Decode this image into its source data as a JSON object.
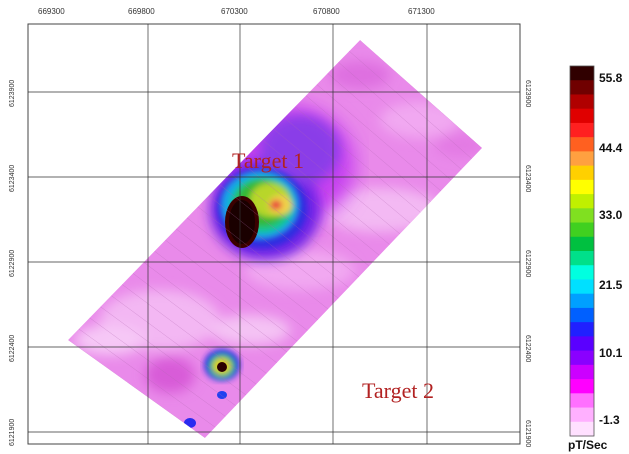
{
  "x_ticks": [
    "669300",
    "669800",
    "670300",
    "670800",
    "671300"
  ],
  "y_ticks": [
    "6123900",
    "6123400",
    "6122900",
    "6122400",
    "6121900"
  ],
  "targets": [
    "Target 1",
    "Target 2"
  ],
  "legend": {
    "values": [
      "55.8",
      "44.4",
      "33.0",
      "21.5",
      "10.1",
      "-1.3"
    ],
    "unit": "pT/Sec",
    "colors": [
      "#ffe0ff",
      "#ffb0ff",
      "#ff70ff",
      "#ff00ff",
      "#cc00ff",
      "#8a00ff",
      "#5a00ff",
      "#2020ff",
      "#0060ff",
      "#00a0ff",
      "#00e0ff",
      "#00ffe0",
      "#00e08a",
      "#00c040",
      "#40d020",
      "#80e020",
      "#c0f000",
      "#ffff00",
      "#ffd000",
      "#ffa040",
      "#ff6020",
      "#ff2020",
      "#e00000",
      "#b00000",
      "#700000",
      "#300000"
    ]
  }
}
